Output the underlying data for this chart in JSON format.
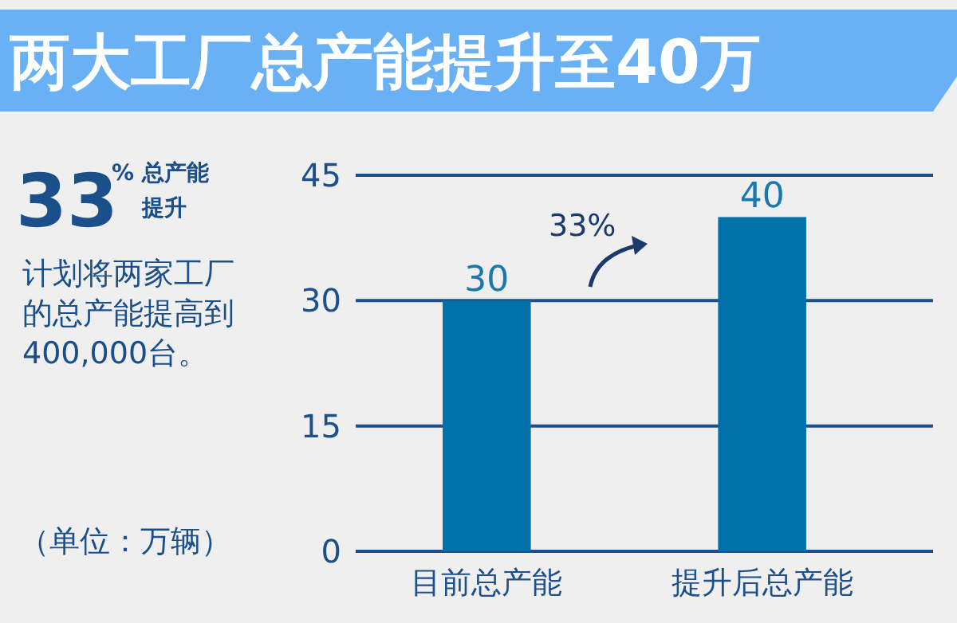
{
  "chart_data": {
    "type": "bar",
    "title": "两大工厂总产能提升至40万",
    "categories": [
      "目前总产能",
      "提升后总产能"
    ],
    "values": [
      30,
      40
    ],
    "color": "#0072a9",
    "ylim": [
      0,
      45
    ],
    "yticks": [
      0,
      15,
      30,
      45
    ],
    "grid": "y",
    "data_labels": true,
    "annotations": [
      "33",
      "%",
      "总产能提升",
      "计划将两家工厂的总产能提高到400,000台。",
      "（单位：万辆）",
      "33%"
    ]
  }
}
